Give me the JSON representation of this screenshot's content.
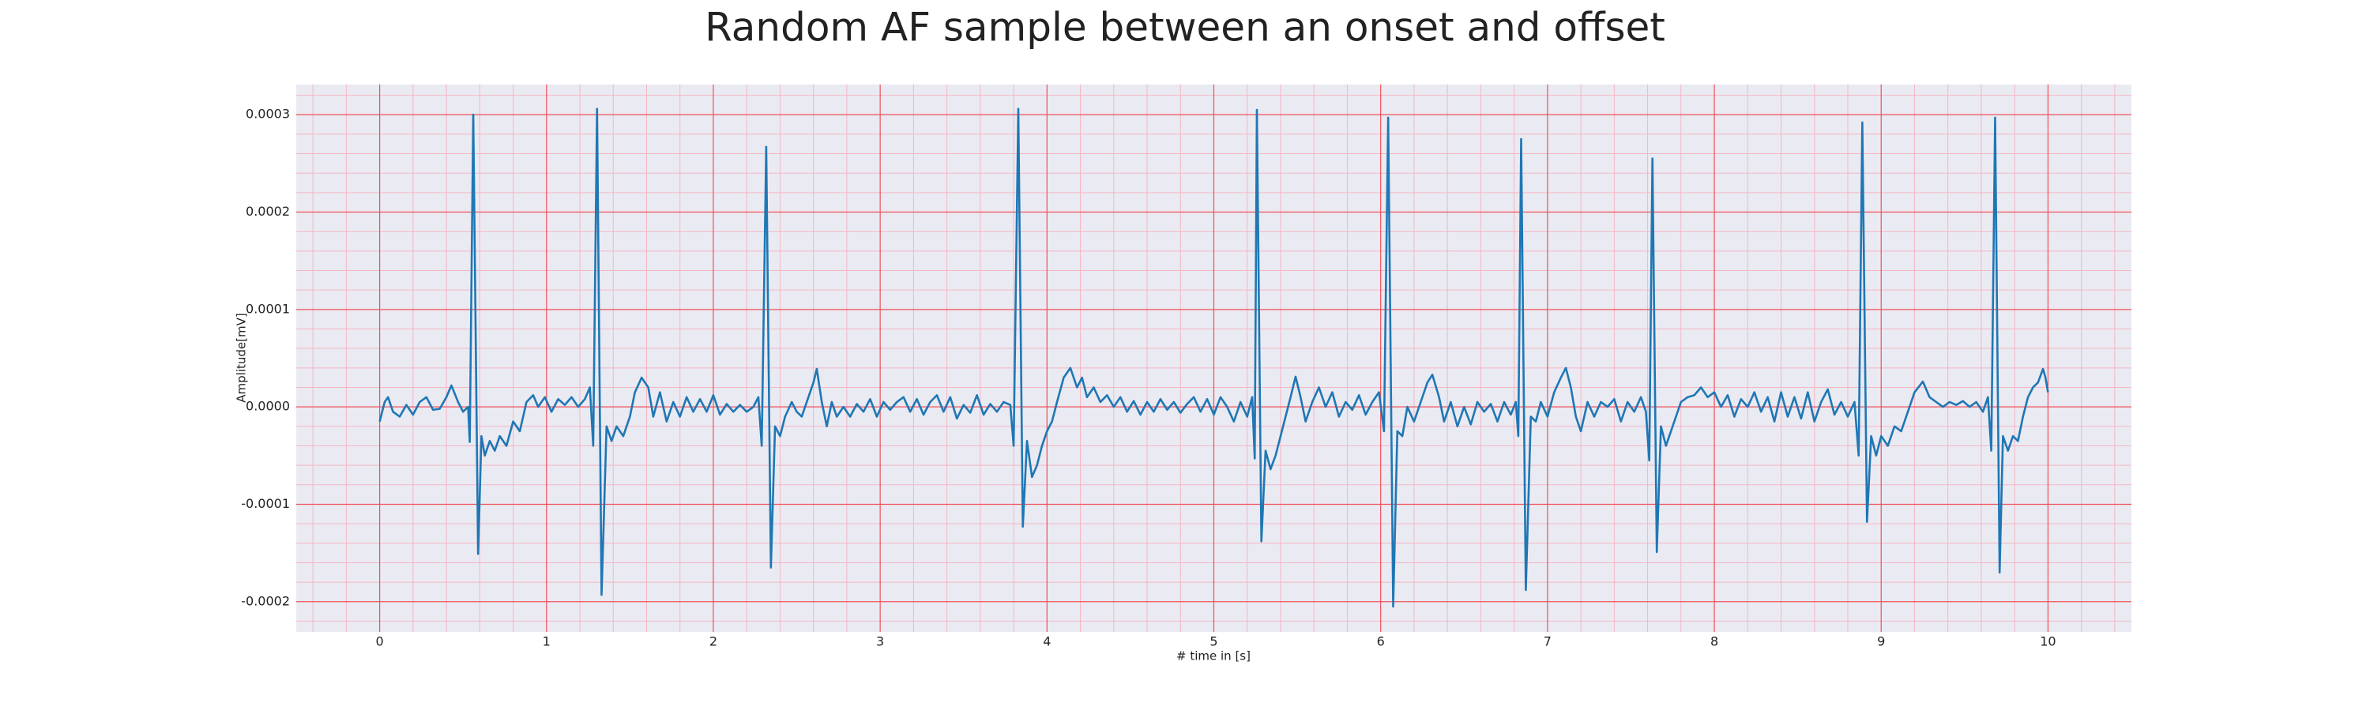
{
  "chart_data": {
    "type": "line",
    "title": "Random AF sample between an onset and offset",
    "xlabel": "# time in [s]",
    "ylabel": "Amplitude[mV]",
    "color": "#1f77b4",
    "grid": true,
    "minor_grid": true,
    "xlim": [
      -0.5,
      10.5
    ],
    "ylim": [
      -0.000231,
      0.000331
    ],
    "xticks": [
      0,
      1,
      2,
      3,
      4,
      5,
      6,
      7,
      8,
      9,
      10
    ],
    "yticks": [
      -0.0002,
      -0.0001,
      {
        "value": 0,
        "label": "0.0000"
      },
      0.0001,
      0.0002,
      0.0003
    ],
    "x": [
      0.0,
      0.03,
      0.05,
      0.08,
      0.12,
      0.16,
      0.2,
      0.24,
      0.28,
      0.32,
      0.36,
      0.4,
      0.43,
      0.47,
      0.5,
      0.53,
      0.54,
      0.561,
      0.59,
      0.61,
      0.63,
      0.66,
      0.69,
      0.72,
      0.76,
      0.8,
      0.84,
      0.88,
      0.92,
      0.95,
      0.99,
      1.03,
      1.07,
      1.11,
      1.15,
      1.19,
      1.23,
      1.26,
      1.28,
      1.303,
      1.33,
      1.36,
      1.39,
      1.42,
      1.46,
      1.5,
      1.53,
      1.57,
      1.61,
      1.64,
      1.68,
      1.72,
      1.76,
      1.8,
      1.84,
      1.88,
      1.92,
      1.96,
      2.0,
      2.04,
      2.08,
      2.12,
      2.16,
      2.2,
      2.24,
      2.27,
      2.29,
      2.317,
      2.345,
      2.37,
      2.4,
      2.43,
      2.47,
      2.5,
      2.53,
      2.57,
      2.6,
      2.62,
      2.65,
      2.68,
      2.71,
      2.74,
      2.78,
      2.82,
      2.86,
      2.9,
      2.94,
      2.98,
      3.02,
      3.06,
      3.1,
      3.14,
      3.18,
      3.22,
      3.26,
      3.3,
      3.34,
      3.38,
      3.42,
      3.46,
      3.5,
      3.54,
      3.58,
      3.62,
      3.66,
      3.7,
      3.74,
      3.78,
      3.8,
      3.828,
      3.855,
      3.88,
      3.91,
      3.94,
      3.97,
      4.0,
      4.03,
      4.06,
      4.1,
      4.14,
      4.18,
      4.21,
      4.24,
      4.28,
      4.32,
      4.36,
      4.4,
      4.44,
      4.48,
      4.52,
      4.56,
      4.6,
      4.64,
      4.68,
      4.72,
      4.76,
      4.8,
      4.84,
      4.88,
      4.92,
      4.96,
      5.0,
      5.04,
      5.08,
      5.12,
      5.16,
      5.2,
      5.23,
      5.245,
      5.258,
      5.285,
      5.31,
      5.34,
      5.37,
      5.4,
      5.43,
      5.46,
      5.49,
      5.52,
      5.55,
      5.59,
      5.63,
      5.67,
      5.71,
      5.75,
      5.79,
      5.83,
      5.87,
      5.91,
      5.95,
      5.99,
      6.02,
      6.045,
      6.075,
      6.1,
      6.13,
      6.16,
      6.2,
      6.24,
      6.28,
      6.31,
      6.35,
      6.38,
      6.42,
      6.46,
      6.5,
      6.54,
      6.58,
      6.62,
      6.66,
      6.7,
      6.74,
      6.78,
      6.81,
      6.825,
      6.842,
      6.87,
      6.9,
      6.93,
      6.96,
      7.0,
      7.04,
      7.08,
      7.11,
      7.14,
      7.17,
      7.2,
      7.24,
      7.28,
      7.32,
      7.36,
      7.4,
      7.44,
      7.48,
      7.52,
      7.56,
      7.59,
      7.61,
      7.629,
      7.655,
      7.68,
      7.71,
      7.74,
      7.77,
      7.8,
      7.84,
      7.88,
      7.92,
      7.96,
      8.0,
      8.04,
      8.08,
      8.12,
      8.16,
      8.2,
      8.24,
      8.28,
      8.32,
      8.36,
      8.4,
      8.44,
      8.48,
      8.52,
      8.56,
      8.6,
      8.64,
      8.68,
      8.72,
      8.76,
      8.8,
      8.84,
      8.865,
      8.887,
      8.915,
      8.94,
      8.97,
      9.0,
      9.04,
      9.08,
      9.12,
      9.16,
      9.2,
      9.25,
      9.29,
      9.33,
      9.37,
      9.41,
      9.45,
      9.49,
      9.53,
      9.57,
      9.61,
      9.64,
      9.66,
      9.683,
      9.71,
      9.73,
      9.76,
      9.79,
      9.82,
      9.85,
      9.88,
      9.91,
      9.94,
      9.97,
      9.985,
      10.0
    ],
    "values": [
      -1.5e-05,
      5e-06,
      1e-05,
      -5e-06,
      -1e-05,
      2e-06,
      -8e-06,
      5e-06,
      1e-05,
      -3e-06,
      -2e-06,
      1e-05,
      2.2e-05,
      5e-06,
      -5e-06,
      0,
      -3.6e-05,
      0.0003,
      -0.000151,
      -3e-05,
      -5e-05,
      -3.5e-05,
      -4.5e-05,
      -3e-05,
      -4e-05,
      -1.5e-05,
      -2.5e-05,
      5e-06,
      1.2e-05,
      0,
      1e-05,
      -5e-06,
      8e-06,
      2e-06,
      1e-05,
      0,
      8e-06,
      2e-05,
      -4e-05,
      0.000306,
      -0.000193,
      -2e-05,
      -3.5e-05,
      -2e-05,
      -3e-05,
      -1e-05,
      1.5e-05,
      3e-05,
      2e-05,
      -1e-05,
      1.5e-05,
      -1.5e-05,
      5e-06,
      -1e-05,
      1e-05,
      -5e-06,
      8e-06,
      -5e-06,
      1.2e-05,
      -8e-06,
      3e-06,
      -5e-06,
      2e-06,
      -5e-06,
      0,
      1e-05,
      -4e-05,
      0.000267,
      -0.000165,
      -2e-05,
      -3e-05,
      -1e-05,
      5e-06,
      -5e-06,
      -1e-05,
      1e-05,
      2.5e-05,
      3.9e-05,
      5e-06,
      -2e-05,
      5e-06,
      -1e-05,
      0,
      -1e-05,
      3e-06,
      -5e-06,
      8e-06,
      -1e-05,
      5e-06,
      -3e-06,
      5e-06,
      1e-05,
      -5e-06,
      8e-06,
      -8e-06,
      5e-06,
      1.2e-05,
      -5e-06,
      1e-05,
      -1.2e-05,
      2e-06,
      -6e-06,
      1.2e-05,
      -8e-06,
      3e-06,
      -5e-06,
      5e-06,
      2e-06,
      -4e-05,
      0.000306,
      -0.000123,
      -3.5e-05,
      -7.2e-05,
      -6e-05,
      -4e-05,
      -2.5e-05,
      -1.5e-05,
      5e-06,
      3e-05,
      4e-05,
      2e-05,
      3e-05,
      1e-05,
      2e-05,
      5e-06,
      1.2e-05,
      0,
      1e-05,
      -5e-06,
      6e-06,
      -8e-06,
      5e-06,
      -5e-06,
      8e-06,
      -3e-06,
      5e-06,
      -6e-06,
      3e-06,
      1e-05,
      -5e-06,
      8e-06,
      -8e-06,
      1e-05,
      0,
      -1.5e-05,
      5e-06,
      -1e-05,
      1e-05,
      -5.3e-05,
      0.000305,
      -0.000138,
      -4.5e-05,
      -6.4e-05,
      -5e-05,
      -3e-05,
      -1e-05,
      1e-05,
      3.1e-05,
      1e-05,
      -1.5e-05,
      5e-06,
      2e-05,
      0,
      1.5e-05,
      -1e-05,
      5e-06,
      -3e-06,
      1.2e-05,
      -8e-06,
      5e-06,
      1.5e-05,
      -2.5e-05,
      0.000297,
      -0.000205,
      -2.5e-05,
      -3e-05,
      0,
      -1.5e-05,
      5e-06,
      2.5e-05,
      3.3e-05,
      1e-05,
      -1.5e-05,
      5e-06,
      -2e-05,
      0,
      -1.8e-05,
      5e-06,
      -5e-06,
      3e-06,
      -1.5e-05,
      5e-06,
      -8e-06,
      5e-06,
      -3e-05,
      0.000275,
      -0.000188,
      -1e-05,
      -1.5e-05,
      5e-06,
      -1e-05,
      1.5e-05,
      3e-05,
      4e-05,
      2e-05,
      -1e-05,
      -2.5e-05,
      5e-06,
      -1e-05,
      5e-06,
      0,
      8e-06,
      -1.5e-05,
      5e-06,
      -5e-06,
      1e-05,
      -5e-06,
      -5.5e-05,
      0.000255,
      -0.000149,
      -2e-05,
      -4e-05,
      -2.5e-05,
      -1e-05,
      5e-06,
      1e-05,
      1.2e-05,
      2e-05,
      1e-05,
      1.5e-05,
      0,
      1.2e-05,
      -1e-05,
      8e-06,
      0,
      1.5e-05,
      -5e-06,
      1e-05,
      -1.5e-05,
      1.5e-05,
      -1e-05,
      1e-05,
      -1.2e-05,
      1.5e-05,
      -1.5e-05,
      5e-06,
      1.8e-05,
      -8e-06,
      5e-06,
      -1e-05,
      5e-06,
      -5e-05,
      0.000292,
      -0.000118,
      -3e-05,
      -5e-05,
      -3e-05,
      -4e-05,
      -2e-05,
      -2.5e-05,
      -5e-06,
      1.5e-05,
      2.6e-05,
      1e-05,
      5e-06,
      0,
      5e-06,
      2e-06,
      6e-06,
      0,
      5e-06,
      -5e-06,
      1e-05,
      -4.5e-05,
      0.000297,
      -0.00017,
      -3e-05,
      -4.5e-05,
      -3e-05,
      -3.5e-05,
      -1e-05,
      1e-05,
      2e-05,
      2.5e-05,
      3.9e-05,
      3e-05,
      1.5e-05
    ]
  }
}
